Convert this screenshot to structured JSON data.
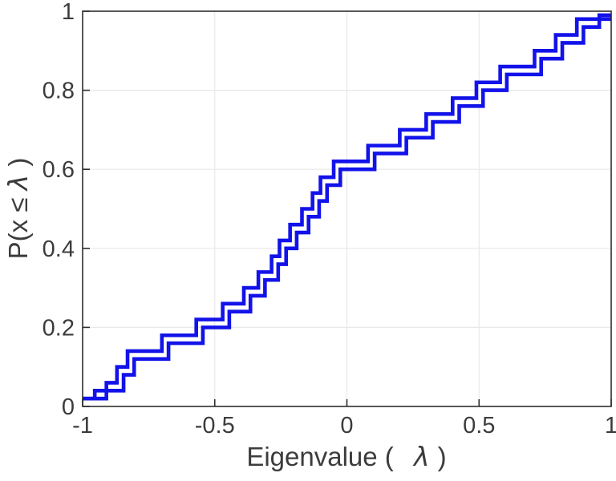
{
  "figure": {
    "background_color": "#ffffff",
    "axis_color": "#2e2e2e",
    "grid_color": "#e8e8e8",
    "text_color": "#3c3c3c"
  },
  "chart_data": {
    "type": "line",
    "subtype": "stairs-ecdf",
    "title": "",
    "xlabel": "Eigenvalue ( λ)",
    "xlabel_parts": {
      "prefix": "Eigenvalue (",
      "lambda": "λ",
      "suffix": ")"
    },
    "ylabel": "P(x ≤ λ)",
    "ylabel_parts": {
      "prefix": "P(x ≤ ",
      "lambda": "λ",
      "suffix": ")"
    },
    "xlim": [
      -1,
      1
    ],
    "ylim": [
      0,
      1
    ],
    "xticks": [
      -1,
      -0.5,
      0,
      0.5,
      1
    ],
    "xtick_labels": [
      "-1",
      "-0.5",
      "0",
      "0.5",
      "1"
    ],
    "yticks": [
      0,
      0.2,
      0.4,
      0.6,
      0.8,
      1
    ],
    "ytick_labels": [
      "0",
      "0.2",
      "0.4",
      "0.6",
      "0.8",
      "1"
    ],
    "grid": true,
    "legend": "none",
    "line_color": "#1212ea",
    "line_width": 4.6,
    "series": [
      {
        "name": "ecdf-staircase-1",
        "color": "#1212ea",
        "start_x": -1,
        "end_x": 1,
        "jump_x": [
          -0.91,
          -0.87,
          -0.83,
          -0.7,
          -0.57,
          -0.47,
          -0.39,
          -0.335,
          -0.285,
          -0.255,
          -0.215,
          -0.17,
          -0.13,
          -0.1,
          -0.05,
          0.08,
          0.2,
          0.3,
          0.4,
          0.49,
          0.58,
          0.71,
          0.79,
          0.87
        ],
        "levels": [
          0.02,
          0.06,
          0.1,
          0.14,
          0.18,
          0.22,
          0.26,
          0.3,
          0.34,
          0.38,
          0.42,
          0.46,
          0.5,
          0.54,
          0.58,
          0.62,
          0.66,
          0.7,
          0.74,
          0.78,
          0.82,
          0.86,
          0.9,
          0.94,
          0.98
        ]
      },
      {
        "name": "ecdf-staircase-2",
        "color": "#1212ea",
        "start_x": -1,
        "end_x": 1,
        "jump_x": [
          -0.954,
          -0.845,
          -0.805,
          -0.675,
          -0.545,
          -0.445,
          -0.365,
          -0.31,
          -0.26,
          -0.23,
          -0.19,
          -0.145,
          -0.105,
          -0.075,
          -0.025,
          0.105,
          0.225,
          0.325,
          0.425,
          0.515,
          0.605,
          0.735,
          0.815,
          0.895,
          0.955
        ],
        "levels": [
          0.02,
          0.04,
          0.08,
          0.12,
          0.16,
          0.2,
          0.24,
          0.28,
          0.32,
          0.36,
          0.4,
          0.44,
          0.48,
          0.52,
          0.56,
          0.6,
          0.64,
          0.68,
          0.72,
          0.76,
          0.8,
          0.84,
          0.88,
          0.92,
          0.96,
          0.99
        ]
      }
    ]
  }
}
